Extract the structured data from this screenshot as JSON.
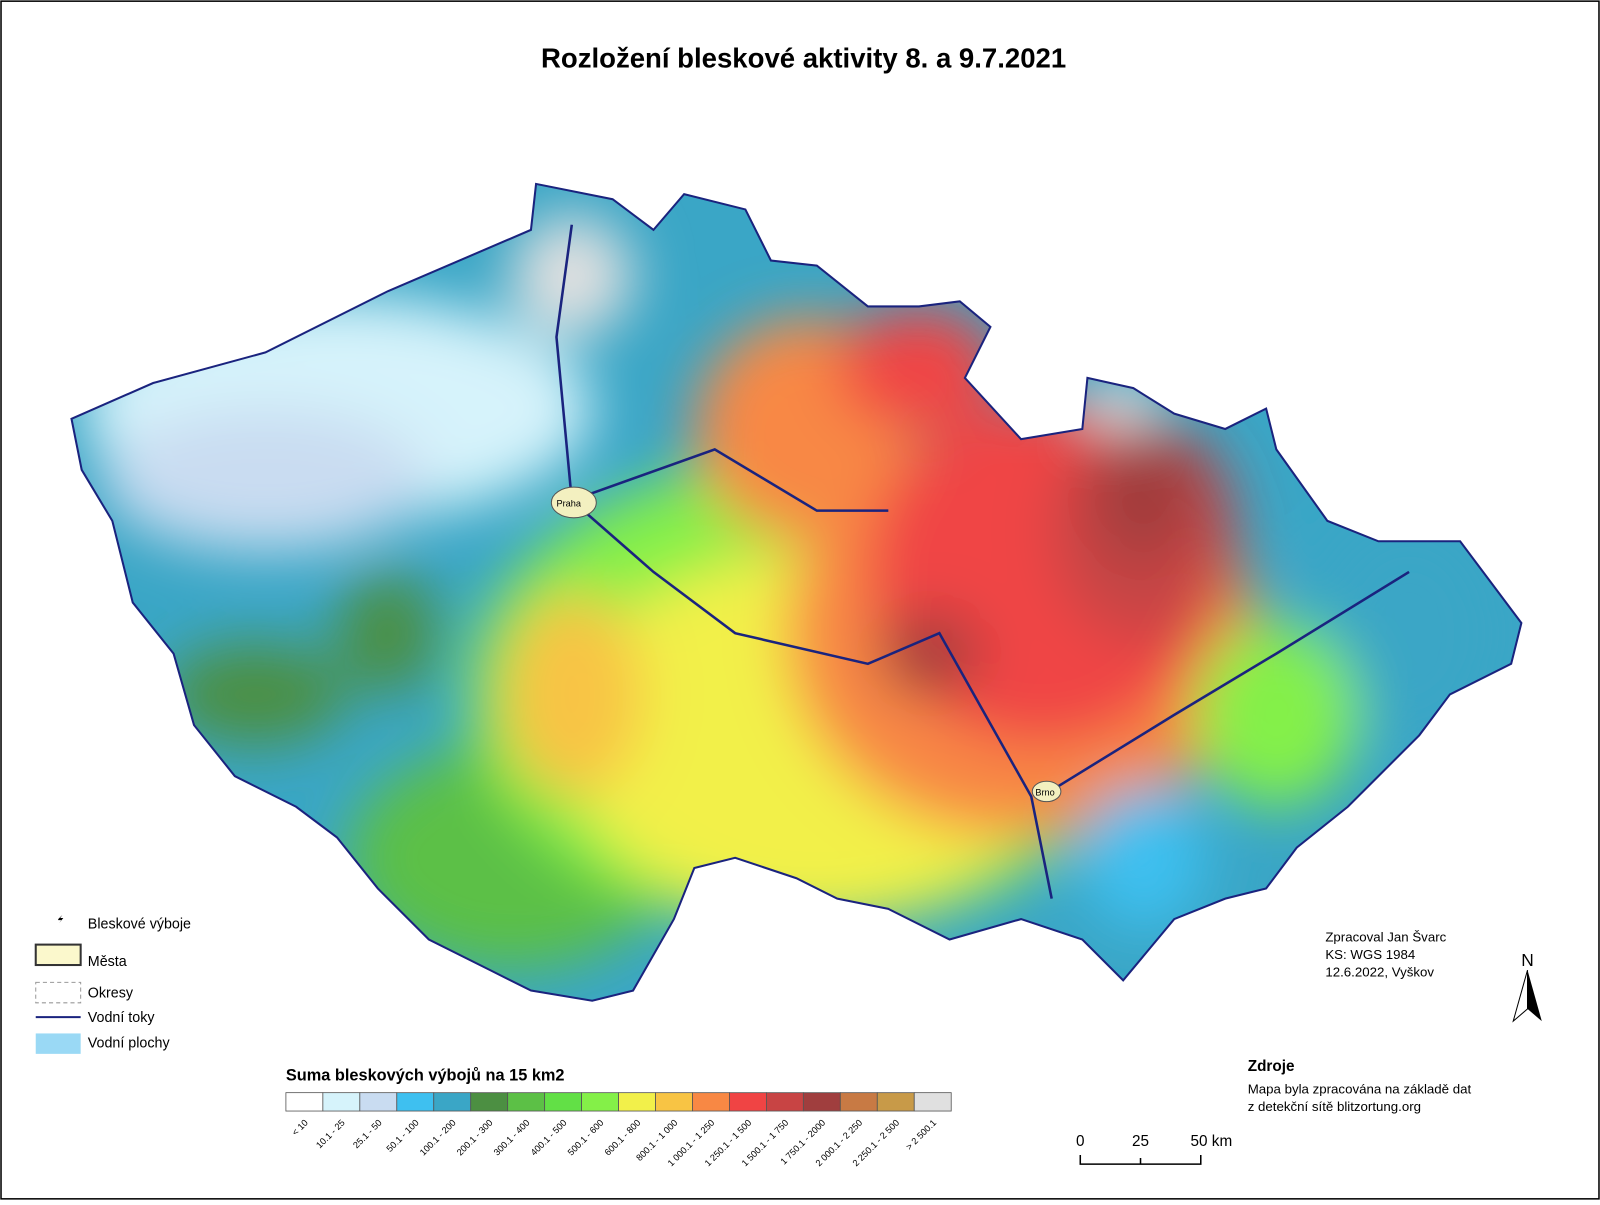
{
  "header": {
    "title": "Rozložení bleskové aktivity 8. a 9.7.2021"
  },
  "legend": {
    "items": [
      "Bleskové výboje",
      "Města",
      "Okresy",
      "Vodní toky",
      "Vodní plochy"
    ]
  },
  "scale": {
    "title": "Suma bleskových výbojů na 15 km2",
    "classes": [
      {
        "label": "< 10",
        "color": "#ffffff"
      },
      {
        "label": "10.1 - 25",
        "color": "#d6f3fb"
      },
      {
        "label": "25.1 - 50",
        "color": "#c9dcf1"
      },
      {
        "label": "50.1 - 100",
        "color": "#3ec0f0"
      },
      {
        "label": "100.1 - 200",
        "color": "#3aa6c6"
      },
      {
        "label": "200.1 - 300",
        "color": "#4c8f42"
      },
      {
        "label": "300.1 - 400",
        "color": "#5cc046"
      },
      {
        "label": "400.1 - 500",
        "color": "#62e046"
      },
      {
        "label": "500.1 - 600",
        "color": "#84f048"
      },
      {
        "label": "600.1 - 800",
        "color": "#f2f04a"
      },
      {
        "label": "800.1 - 1 000",
        "color": "#f8c444"
      },
      {
        "label": "1 000.1 - 1 250",
        "color": "#f88844"
      },
      {
        "label": "1 250.1 - 1 500",
        "color": "#f04444"
      },
      {
        "label": "1 500.1 - 1 750",
        "color": "#c84444"
      },
      {
        "label": "1 750.1 - 2000",
        "color": "#a03e3e"
      },
      {
        "label": "2 000.1 - 2 250",
        "color": "#c87a44"
      },
      {
        "label": "2 250.1 - 2 500",
        "color": "#c89a48"
      },
      {
        "label": "> 2 500.1",
        "color": "#e0e0e0"
      }
    ]
  },
  "credits": [
    "Zpracoval Jan Švarc",
    "KS: WGS 1984",
    "12.6.2022, Vyškov"
  ],
  "sources": {
    "title": "Zdroje",
    "lines": [
      "Mapa byla zpracována na základě dat",
      "z detekční sítě blitzortung.org"
    ]
  },
  "scalebar": [
    "0",
    "25",
    "50 km"
  ],
  "north": "N",
  "cities": [
    "Praha",
    "Brno"
  ]
}
